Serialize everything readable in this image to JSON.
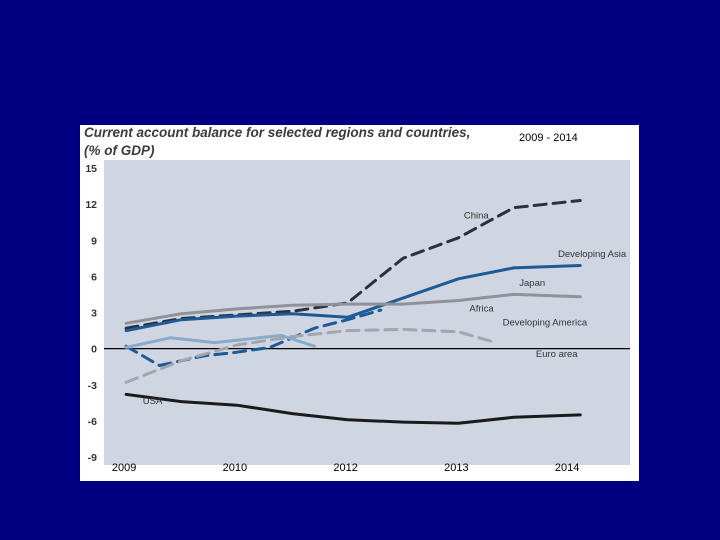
{
  "colors": {
    "background": "#000080",
    "panel": "#ffffff",
    "plot_bg": "#cfd6e2",
    "china": "#2b3040",
    "developing_asia": "#1e5a96",
    "japan": "#8f9398",
    "africa": "#1e5a96",
    "developing_america": "#a3a6aa",
    "euro_area": "#8aabc8",
    "usa": "#1a1a1a"
  },
  "chart_data": {
    "type": "line",
    "title": "Current account balance for selected regions and countries,",
    "title_line2": "(% of GDP)",
    "subtitle": "2009 - 2014",
    "xlabel": "",
    "ylabel": "",
    "ylim": [
      -9,
      15
    ],
    "yticks": [
      "15",
      "12",
      "9",
      "6",
      "3",
      "0",
      "-3",
      "-6",
      "-9"
    ],
    "xticks": [
      {
        "label": "2009",
        "x": 2009
      },
      {
        "label": "2010",
        "x": 2010
      },
      {
        "label": "2012",
        "x": 2011
      },
      {
        "label": "2013",
        "x": 2012
      },
      {
        "label": "2014",
        "x": 2013
      }
    ],
    "xlim": [
      2008.8,
      2013.55
    ],
    "grid": false,
    "zero_line": true,
    "series": [
      {
        "name": "China",
        "color_key": "china",
        "dash": true,
        "label_at": [
          2012.05,
          10.8
        ],
        "points": [
          [
            2009,
            1.7
          ],
          [
            2009.5,
            2.5
          ],
          [
            2010,
            2.8
          ],
          [
            2010.5,
            3.1
          ],
          [
            2011,
            3.8
          ],
          [
            2011.5,
            7.5
          ],
          [
            2012,
            9.2
          ],
          [
            2012.5,
            11.7
          ],
          [
            2013.1,
            12.3
          ]
        ]
      },
      {
        "name": "Developing Asia",
        "color_key": "developing_asia",
        "dash": false,
        "label_at": [
          2012.9,
          7.6
        ],
        "points": [
          [
            2009,
            1.5
          ],
          [
            2009.5,
            2.4
          ],
          [
            2010,
            2.7
          ],
          [
            2010.5,
            2.9
          ],
          [
            2011,
            2.6
          ],
          [
            2011.5,
            4.2
          ],
          [
            2012,
            5.8
          ],
          [
            2012.5,
            6.7
          ],
          [
            2013.1,
            6.9
          ]
        ]
      },
      {
        "name": "Japan",
        "color_key": "japan",
        "dash": false,
        "label_at": [
          2012.55,
          5.2
        ],
        "points": [
          [
            2009,
            2.1
          ],
          [
            2009.5,
            2.9
          ],
          [
            2010,
            3.3
          ],
          [
            2010.5,
            3.6
          ],
          [
            2011,
            3.7
          ],
          [
            2011.5,
            3.7
          ],
          [
            2012,
            4.0
          ],
          [
            2012.5,
            4.5
          ],
          [
            2013.1,
            4.3
          ]
        ]
      },
      {
        "name": "Africa",
        "color_key": "africa",
        "dash": true,
        "label_at": [
          2012.1,
          3.1
        ],
        "points": [
          [
            2009,
            0.2
          ],
          [
            2009.3,
            -1.4
          ],
          [
            2009.7,
            -0.6
          ],
          [
            2010,
            -0.3
          ],
          [
            2010.3,
            0.1
          ],
          [
            2010.7,
            1.7
          ],
          [
            2011,
            2.4
          ],
          [
            2011.3,
            3.2
          ]
        ]
      },
      {
        "name": "Developing America",
        "color_key": "developing_america",
        "dash": true,
        "label_at": [
          2012.4,
          1.9
        ],
        "points": [
          [
            2009,
            -2.8
          ],
          [
            2009.5,
            -1.0
          ],
          [
            2010,
            0.3
          ],
          [
            2010.5,
            1.0
          ],
          [
            2011,
            1.5
          ],
          [
            2011.5,
            1.6
          ],
          [
            2012,
            1.4
          ],
          [
            2012.3,
            0.6
          ]
        ]
      },
      {
        "name": "Euro area",
        "color_key": "euro_area",
        "dash": false,
        "label_at": [
          2012.7,
          -0.7
        ],
        "points": [
          [
            2009,
            0.1
          ],
          [
            2009.4,
            0.9
          ],
          [
            2009.8,
            0.5
          ],
          [
            2010.2,
            0.9
          ],
          [
            2010.4,
            1.1
          ],
          [
            2010.7,
            0.2
          ]
        ]
      },
      {
        "name": "USA",
        "color_key": "usa",
        "dash": false,
        "label_at": [
          2009.15,
          -4.6
        ],
        "points": [
          [
            2009,
            -3.8
          ],
          [
            2009.5,
            -4.4
          ],
          [
            2010,
            -4.7
          ],
          [
            2010.5,
            -5.4
          ],
          [
            2011,
            -5.9
          ],
          [
            2011.5,
            -6.1
          ],
          [
            2012,
            -6.2
          ],
          [
            2012.5,
            -5.7
          ],
          [
            2013.1,
            -5.5
          ]
        ]
      }
    ]
  }
}
